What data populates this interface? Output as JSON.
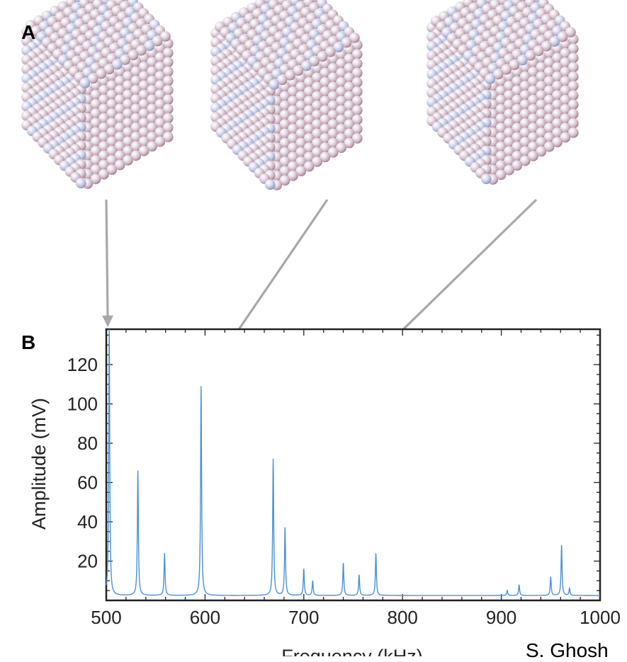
{
  "panels": {
    "a": "A",
    "b": "B"
  },
  "credit": "S. Ghosh",
  "colors": {
    "spectrum": "#4a90d9",
    "arrow": "#a8a8a8",
    "sphere_light": "#f2eef4",
    "sphere_mid": "#c9b3c8",
    "sphere_dark": "#8a6f86",
    "sphere_blue": "#b9c1e0"
  },
  "cubes": [
    {
      "name": "cube-mode-1",
      "points_to_peak": 0
    },
    {
      "name": "cube-mode-2",
      "points_to_peak": 1
    },
    {
      "name": "cube-mode-3",
      "points_to_peak": 2
    }
  ],
  "chart_data": {
    "type": "line",
    "title": "",
    "xlabel": "Frequency (kHz)",
    "ylabel": "Amplitude (mV)",
    "xlim": [
      500,
      1000
    ],
    "ylim": [
      0,
      138
    ],
    "xticks": [
      500,
      600,
      700,
      800,
      900,
      1000
    ],
    "yticks": [
      20,
      40,
      60,
      80,
      100,
      120
    ],
    "baseline": 2.5,
    "series": [
      {
        "peaks": [
          {
            "x": 503,
            "y": 138
          },
          {
            "x": 532,
            "y": 66
          },
          {
            "x": 559,
            "y": 24
          },
          {
            "x": 596,
            "y": 109
          },
          {
            "x": 669,
            "y": 72
          },
          {
            "x": 681,
            "y": 37
          },
          {
            "x": 700,
            "y": 16
          },
          {
            "x": 709,
            "y": 10
          },
          {
            "x": 740,
            "y": 19
          },
          {
            "x": 756,
            "y": 13
          },
          {
            "x": 773,
            "y": 24
          },
          {
            "x": 906,
            "y": 5
          },
          {
            "x": 918,
            "y": 8
          },
          {
            "x": 950,
            "y": 12
          },
          {
            "x": 961,
            "y": 28
          },
          {
            "x": 969,
            "y": 6
          }
        ]
      }
    ]
  }
}
